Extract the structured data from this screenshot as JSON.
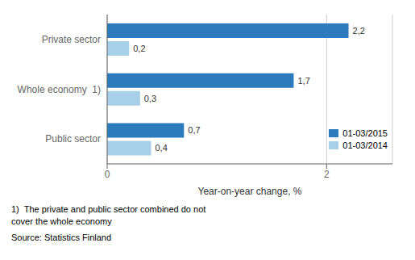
{
  "chart_data": {
    "type": "bar",
    "orientation": "horizontal",
    "categories": [
      "Private sector",
      "Whole economy  1)",
      "Public sector"
    ],
    "series": [
      {
        "name": "01-03/2015",
        "color": "#2B7BBD",
        "values": [
          2.2,
          1.7,
          0.7
        ],
        "value_labels": [
          "2,2",
          "1,7",
          "0,7"
        ]
      },
      {
        "name": "01-03/2014",
        "color": "#A8CFE8",
        "values": [
          0.2,
          0.3,
          0.4
        ],
        "value_labels": [
          "0,2",
          "0,3",
          "0,4"
        ]
      }
    ],
    "xlabel": "Year-on-year change, %",
    "xlim": [
      0,
      2.6
    ],
    "xticks": [
      0,
      2
    ],
    "grid": true,
    "legend": "lower right",
    "data_labels": true,
    "annotations": [
      "1)  The private and public sector combined do not",
      "cover the whole economy",
      "Source: Statistics Finland"
    ]
  }
}
